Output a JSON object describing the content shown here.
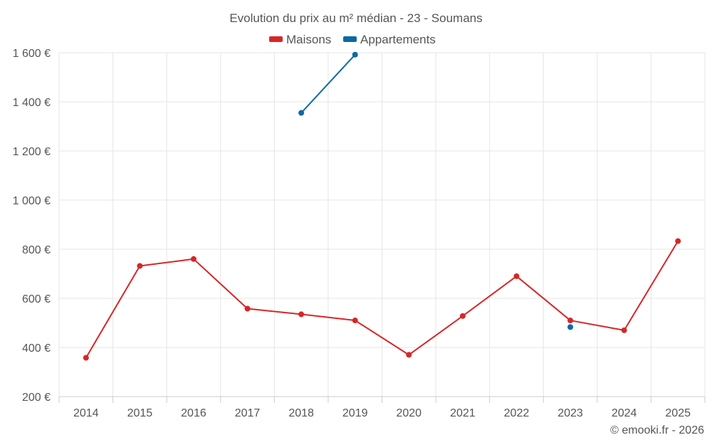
{
  "chart_data": {
    "type": "line",
    "title": "Evolution du prix au m² médian - 23 - Soumans",
    "categories": [
      "2014",
      "2015",
      "2016",
      "2017",
      "2018",
      "2019",
      "2020",
      "2021",
      "2022",
      "2023",
      "2024",
      "2025"
    ],
    "ylim": [
      200,
      1600
    ],
    "yticks": [
      200,
      400,
      600,
      800,
      1000,
      1200,
      1400,
      1600
    ],
    "ytick_labels": [
      "200 €",
      "400 €",
      "600 €",
      "800 €",
      "1 000 €",
      "1 200 €",
      "1 400 €",
      "1 600 €"
    ],
    "grid": true,
    "legend_position": "top-center",
    "series": [
      {
        "name": "Maisons",
        "color": "#d62728",
        "values": [
          358,
          732,
          760,
          558,
          535,
          510,
          370,
          528,
          690,
          510,
          470,
          833
        ]
      },
      {
        "name": "Appartements",
        "color": "#0b6aa2",
        "values": [
          null,
          null,
          null,
          null,
          1355,
          1592,
          null,
          null,
          null,
          483,
          null,
          null
        ]
      }
    ],
    "credit": "© emooki.fr - 2026"
  }
}
